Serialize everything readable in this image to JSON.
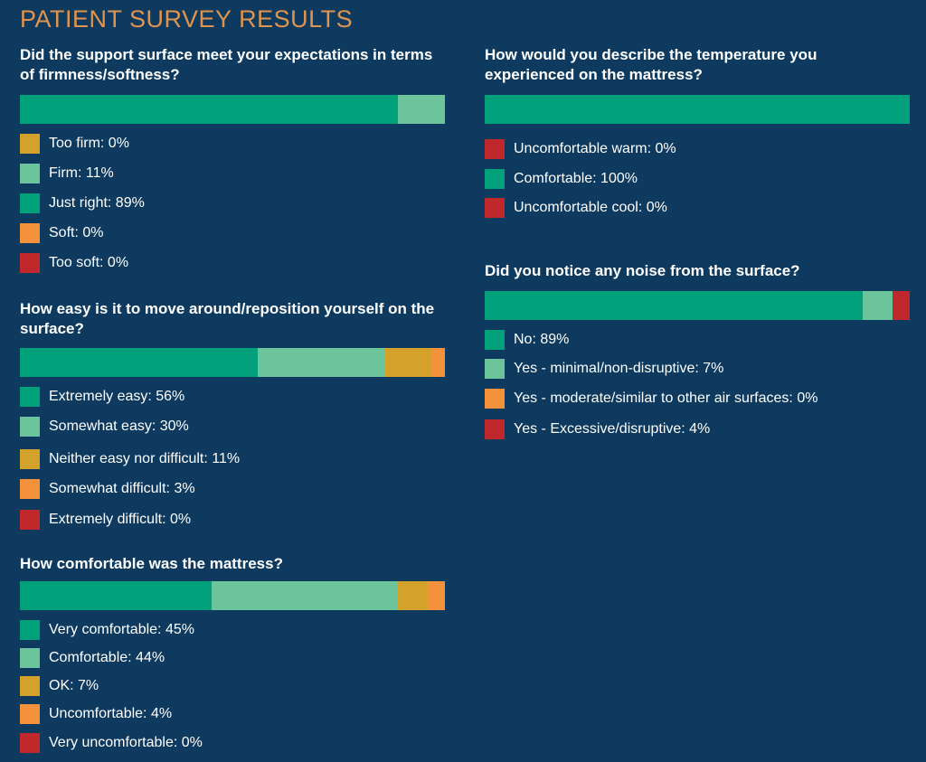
{
  "title": "PATIENT SURVEY RESULTS",
  "colors": {
    "background": "#0d3a5e",
    "title": "#e0944d",
    "dark_green": "#00a07a",
    "light_green": "#6cc49a",
    "gold": "#d4a22a",
    "orange": "#f4923c",
    "red": "#c0282c"
  },
  "chart_data": [
    {
      "type": "bar",
      "subtype": "100% stacked horizontal",
      "title": "Did the support surface meet your expectations in terms of firmness/softness?",
      "xlim": [
        0,
        100
      ],
      "unit": "%",
      "series": [
        {
          "name": "Too firm",
          "label": "Too firm: 0%",
          "value": 0,
          "color": "#d4a22a"
        },
        {
          "name": "Firm",
          "label": "Firm: 11%",
          "value": 11,
          "color": "#6cc49a"
        },
        {
          "name": "Just right",
          "label": "Just right: 89%",
          "value": 89,
          "color": "#00a07a"
        },
        {
          "name": "Soft",
          "label": "Soft: 0%",
          "value": 0,
          "color": "#f4923c"
        },
        {
          "name": "Too soft",
          "label": "Too soft: 0%",
          "value": 0,
          "color": "#c0282c"
        }
      ],
      "bar_order": [
        "Just right",
        "Firm",
        "Too firm",
        "Soft",
        "Too soft"
      ]
    },
    {
      "type": "bar",
      "subtype": "100% stacked horizontal",
      "title": "How easy is it to move around/reposition yourself on the surface?",
      "xlim": [
        0,
        100
      ],
      "unit": "%",
      "series": [
        {
          "name": "Extremely easy",
          "label": "Extremely easy: 56%",
          "value": 56,
          "color": "#00a07a"
        },
        {
          "name": "Somewhat easy",
          "label": "Somewhat easy: 30%",
          "value": 30,
          "color": "#6cc49a"
        },
        {
          "name": "Neither easy nor difficult",
          "label": "Neither easy nor difficult: 11%",
          "value": 11,
          "color": "#d4a22a"
        },
        {
          "name": "Somewhat difficult",
          "label": "Somewhat difficult: 3%",
          "value": 3,
          "color": "#f4923c"
        },
        {
          "name": "Extremely difficult",
          "label": "Extremely difficult: 0%",
          "value": 0,
          "color": "#c0282c"
        }
      ],
      "bar_order": [
        "Extremely easy",
        "Somewhat easy",
        "Neither easy nor difficult",
        "Somewhat difficult",
        "Extremely difficult"
      ]
    },
    {
      "type": "bar",
      "subtype": "100% stacked horizontal",
      "title": "How comfortable was the mattress?",
      "xlim": [
        0,
        100
      ],
      "unit": "%",
      "series": [
        {
          "name": "Very comfortable",
          "label": "Very comfortable: 45%",
          "value": 45,
          "color": "#00a07a"
        },
        {
          "name": "Comfortable",
          "label": "Comfortable: 44%",
          "value": 44,
          "color": "#6cc49a"
        },
        {
          "name": "OK",
          "label": "OK: 7%",
          "value": 7,
          "color": "#d4a22a"
        },
        {
          "name": "Uncomfortable",
          "label": "Uncomfortable: 4%",
          "value": 4,
          "color": "#f4923c"
        },
        {
          "name": "Very uncomfortable",
          "label": "Very uncomfortable: 0%",
          "value": 0,
          "color": "#c0282c"
        }
      ],
      "bar_order": [
        "Very comfortable",
        "Comfortable",
        "OK",
        "Uncomfortable",
        "Very uncomfortable"
      ]
    },
    {
      "type": "bar",
      "subtype": "100% stacked horizontal",
      "title": "How would you describe the temperature you experienced on the mattress?",
      "xlim": [
        0,
        100
      ],
      "unit": "%",
      "series": [
        {
          "name": "Uncomfortable warm",
          "label": "Uncomfortable warm: 0%",
          "value": 0,
          "color": "#c0282c"
        },
        {
          "name": "Comfortable",
          "label": "Comfortable: 100%",
          "value": 100,
          "color": "#00a07a"
        },
        {
          "name": "Uncomfortable cool",
          "label": "Uncomfortable cool: 0%",
          "value": 0,
          "color": "#c0282c"
        }
      ],
      "bar_order": [
        "Comfortable",
        "Uncomfortable warm",
        "Uncomfortable cool"
      ]
    },
    {
      "type": "bar",
      "subtype": "100% stacked horizontal",
      "title": "Did you notice any noise from the surface?",
      "xlim": [
        0,
        100
      ],
      "unit": "%",
      "series": [
        {
          "name": "No",
          "label": "No: 89%",
          "value": 89,
          "color": "#00a07a"
        },
        {
          "name": "Yes - minimal/non-disruptive",
          "label": "Yes - minimal/non-disruptive: 7%",
          "value": 7,
          "color": "#6cc49a"
        },
        {
          "name": "Yes - moderate/similar to other air surfaces",
          "label": "Yes - moderate/similar to other air surfaces: 0%",
          "value": 0,
          "color": "#f4923c"
        },
        {
          "name": "Yes - Excessive/disruptive",
          "label": "Yes - Excessive/disruptive: 4%",
          "value": 4,
          "color": "#c0282c"
        }
      ],
      "bar_order": [
        "No",
        "Yes - minimal/non-disruptive",
        "Yes - moderate/similar to other air surfaces",
        "Yes - Excessive/disruptive"
      ]
    }
  ]
}
